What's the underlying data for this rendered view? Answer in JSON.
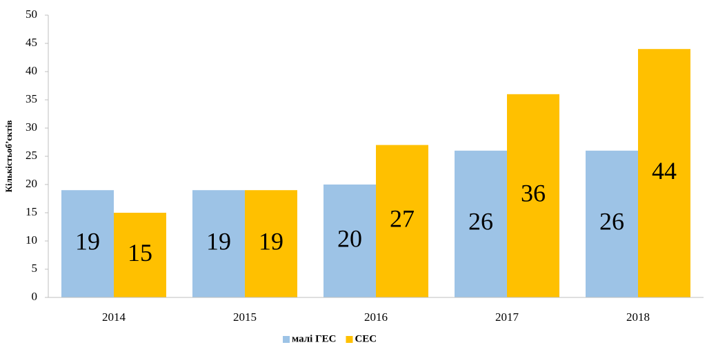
{
  "chart_data": {
    "type": "bar",
    "y_label": "Кількістьоб’єктів",
    "categories": [
      "2014",
      "2015",
      "2016",
      "2017",
      "2018"
    ],
    "series": [
      {
        "name": "малі ГЕС",
        "color": "#9dc3e6",
        "values": [
          19,
          19,
          20,
          26,
          26
        ]
      },
      {
        "name": "СЕС",
        "color": "#ffc000",
        "values": [
          15,
          19,
          27,
          36,
          44
        ]
      }
    ],
    "ylim": [
      0,
      50
    ],
    "yticks": [
      0,
      5,
      10,
      15,
      20,
      25,
      30,
      35,
      40,
      45,
      50
    ],
    "grid": false,
    "legend": "bottom",
    "data_labels": true
  }
}
